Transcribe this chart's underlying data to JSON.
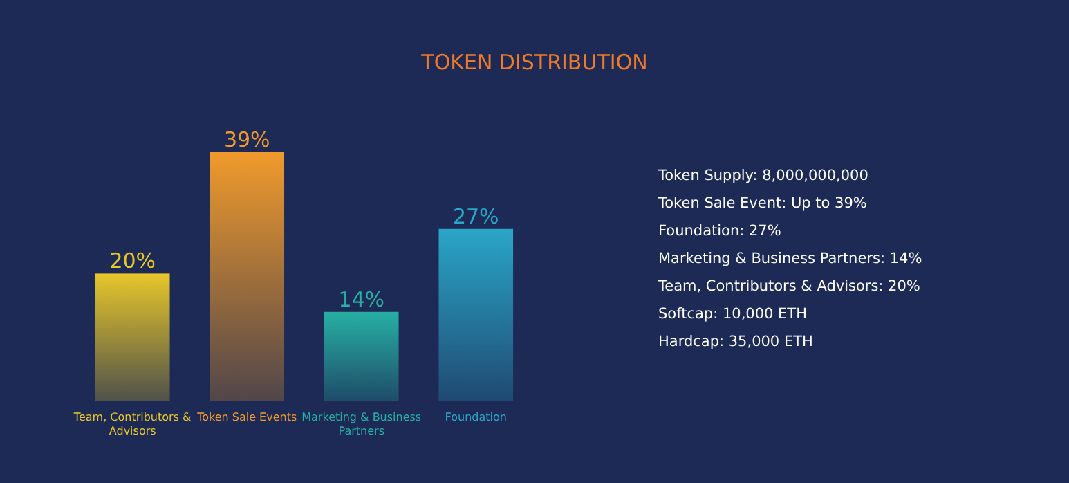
{
  "chart_data": [
    {
      "type": "bar",
      "title": "TOKEN DISTRIBUTION",
      "categories": [
        "Team, Contributors & Advisors",
        "Token Sale Events",
        "Marketing & Business Partners",
        "Foundation"
      ],
      "values": [
        20,
        39,
        14,
        27
      ],
      "value_labels": [
        "20%",
        "39%",
        "14%",
        "27%"
      ],
      "colors": [
        "#e6c62a",
        "#f09a2c",
        "#27b0a4",
        "#2aa6c8"
      ]
    },
    {
      "type": "other",
      "annotations": [
        "Token Supply: 8,000,000,000",
        "Token Sale Event: Up to 39%",
        "Foundation: 27%",
        "Marketing & Business Partners: 14%",
        "Team, Contributors & Advisors: 20%",
        "Softcap: 10,000 ETH",
        "Hardcap: 35,000 ETH"
      ]
    }
  ]
}
